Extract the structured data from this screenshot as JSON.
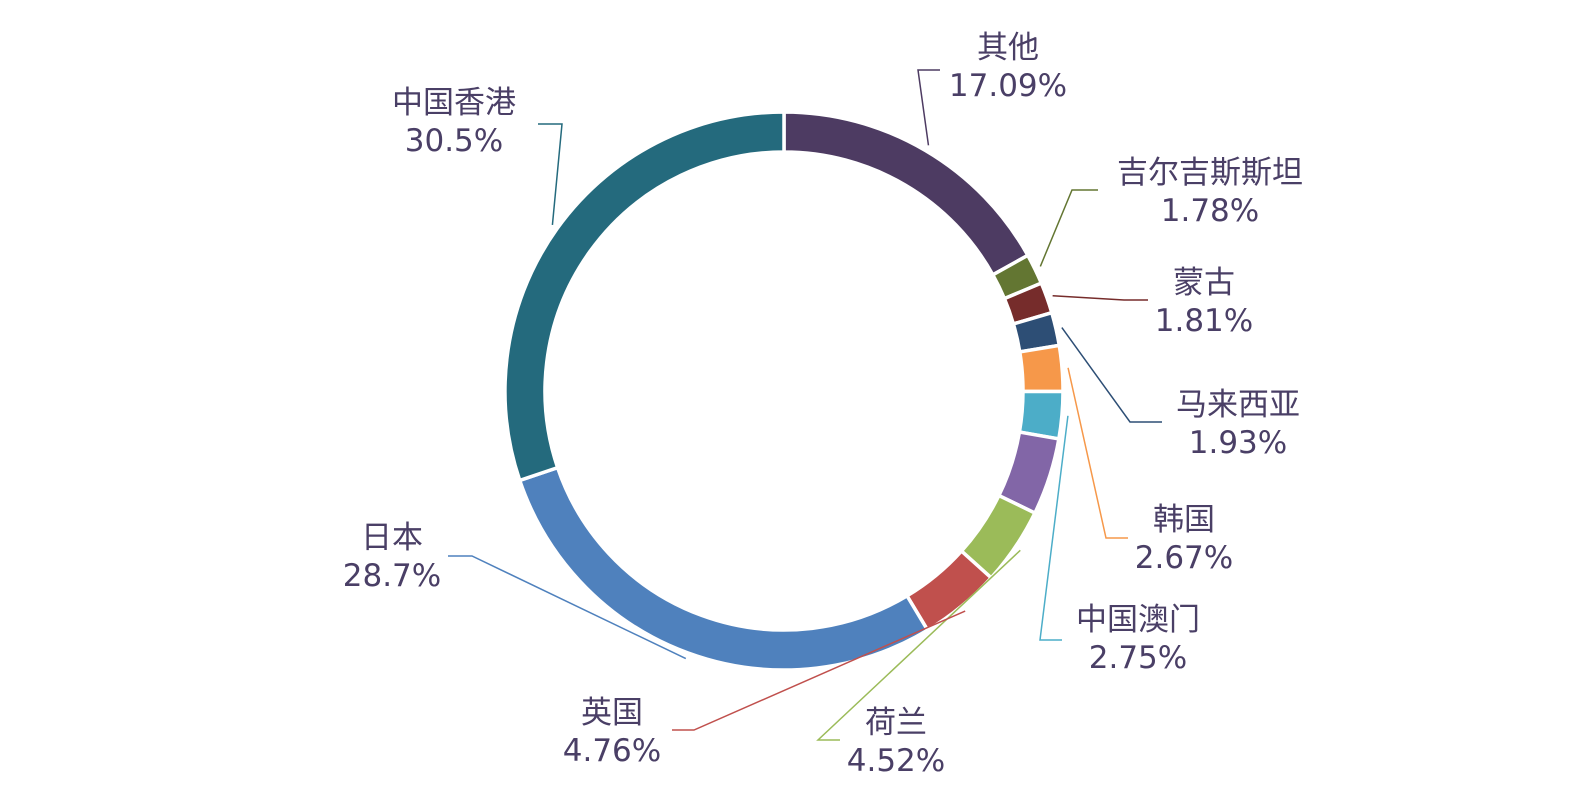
{
  "chart_data": {
    "type": "pie",
    "donut": true,
    "title": "",
    "slices": [
      {
        "label": "其他",
        "value": 17.09,
        "value_label": "17.09%",
        "color": "#4d3b62"
      },
      {
        "label": "吉尔吉斯斯坦",
        "value": 1.78,
        "value_label": "1.78%",
        "color": "#637632"
      },
      {
        "label": "蒙古",
        "value": 1.81,
        "value_label": "1.81%",
        "color": "#762c2b"
      },
      {
        "label": "马来西亚",
        "value": 1.93,
        "value_label": "1.93%",
        "color": "#2d4e75"
      },
      {
        "label": "韩国",
        "value": 2.67,
        "value_label": "2.67%",
        "color": "#f6984a"
      },
      {
        "label": "中国澳门",
        "value": 2.75,
        "value_label": "2.75%",
        "color": "#4cadc8"
      },
      {
        "label": "",
        "value": 4.5,
        "value_label": "",
        "color": "#8266a7"
      },
      {
        "label": "荷兰",
        "value": 4.52,
        "value_label": "4.52%",
        "color": "#9bbb59"
      },
      {
        "label": "英国",
        "value": 4.76,
        "value_label": "4.76%",
        "color": "#c0504d"
      },
      {
        "label": "日本",
        "value": 28.7,
        "value_label": "28.7%",
        "color": "#4f81bd"
      },
      {
        "label": "中国香港",
        "value": 30.5,
        "value_label": "30.5%",
        "color": "#246a7d"
      }
    ]
  }
}
